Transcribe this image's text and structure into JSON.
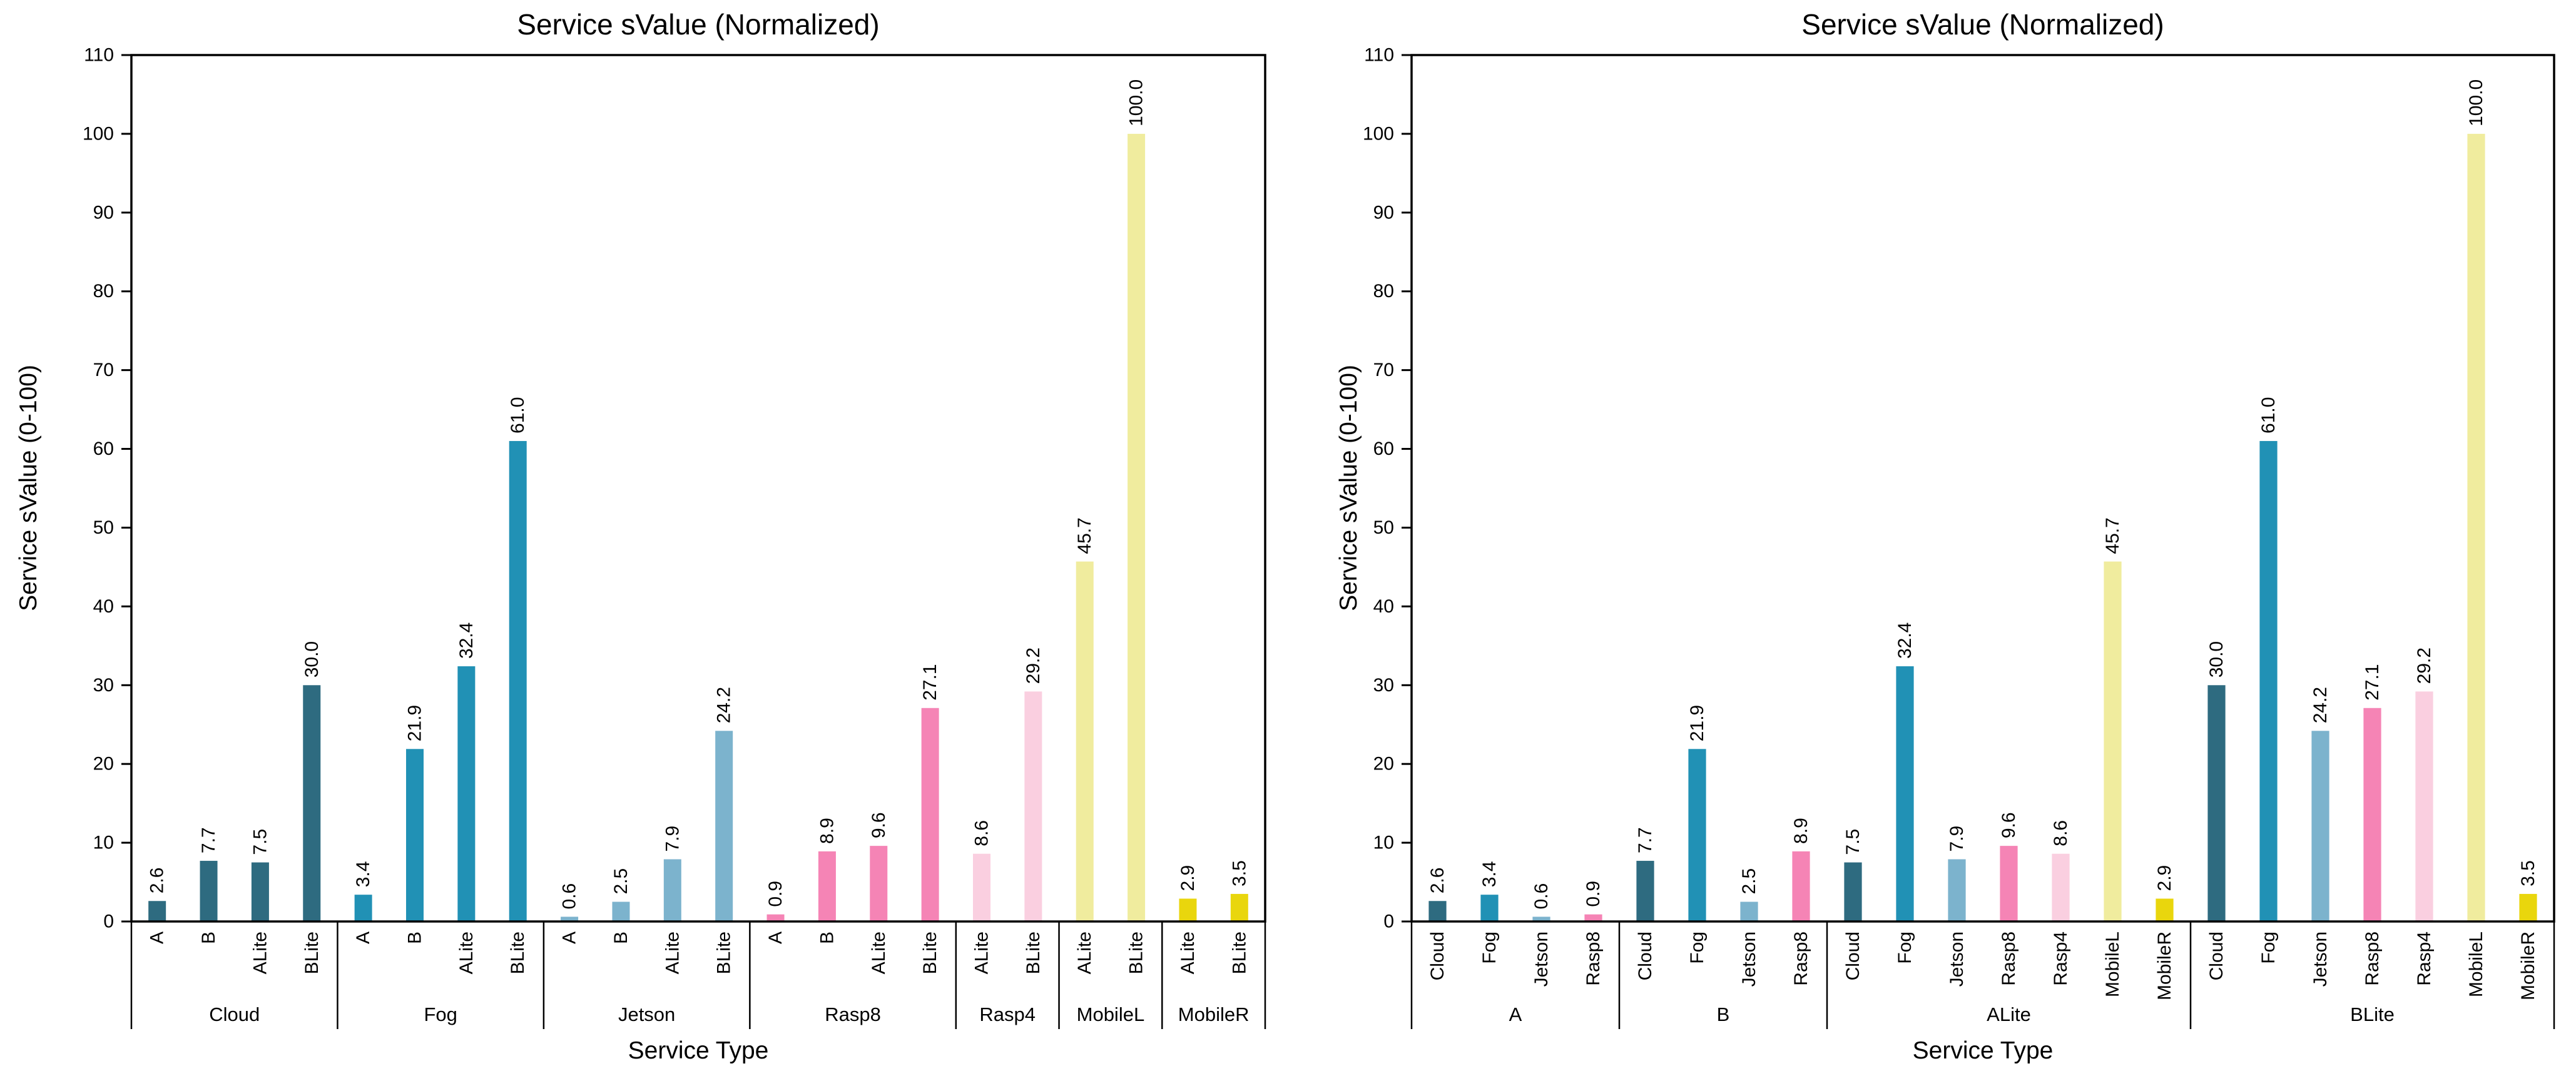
{
  "palette": {
    "Cloud": "#2e6b80",
    "Fog": "#2191b5",
    "Jetson": "#7cb3cd",
    "Rasp8": "#f584b5",
    "Rasp4": "#facfe0",
    "MobileL": "#f0ec9e",
    "MobileR": "#e9d60d"
  },
  "chart_data": [
    {
      "type": "bar",
      "title": "Service sValue (Normalized)",
      "xlabel": "Service Type",
      "ylabel": "Service sValue (0-100)",
      "ylim": [
        0,
        110
      ],
      "yticks": [
        0,
        10,
        20,
        30,
        40,
        50,
        60,
        70,
        80,
        90,
        100,
        110
      ],
      "grid": false,
      "legend": "none",
      "value_label_format": "0.1f",
      "groups": [
        {
          "label": "Cloud",
          "bars": [
            {
              "label": "A",
              "value": 2.6,
              "color_key": "Cloud"
            },
            {
              "label": "B",
              "value": 7.7,
              "color_key": "Cloud"
            },
            {
              "label": "ALite",
              "value": 7.5,
              "color_key": "Cloud"
            },
            {
              "label": "BLite",
              "value": 30.0,
              "color_key": "Cloud"
            }
          ]
        },
        {
          "label": "Fog",
          "bars": [
            {
              "label": "A",
              "value": 3.4,
              "color_key": "Fog"
            },
            {
              "label": "B",
              "value": 21.9,
              "color_key": "Fog"
            },
            {
              "label": "ALite",
              "value": 32.4,
              "color_key": "Fog"
            },
            {
              "label": "BLite",
              "value": 61.0,
              "color_key": "Fog"
            }
          ]
        },
        {
          "label": "Jetson",
          "bars": [
            {
              "label": "A",
              "value": 0.6,
              "color_key": "Jetson"
            },
            {
              "label": "B",
              "value": 2.5,
              "color_key": "Jetson"
            },
            {
              "label": "ALite",
              "value": 7.9,
              "color_key": "Jetson"
            },
            {
              "label": "BLite",
              "value": 24.2,
              "color_key": "Jetson"
            }
          ]
        },
        {
          "label": "Rasp8",
          "bars": [
            {
              "label": "A",
              "value": 0.9,
              "color_key": "Rasp8"
            },
            {
              "label": "B",
              "value": 8.9,
              "color_key": "Rasp8"
            },
            {
              "label": "ALite",
              "value": 9.6,
              "color_key": "Rasp8"
            },
            {
              "label": "BLite",
              "value": 27.1,
              "color_key": "Rasp8"
            }
          ]
        },
        {
          "label": "Rasp4",
          "bars": [
            {
              "label": "ALite",
              "value": 8.6,
              "color_key": "Rasp4"
            },
            {
              "label": "BLite",
              "value": 29.2,
              "color_key": "Rasp4"
            }
          ]
        },
        {
          "label": "MobileL",
          "bars": [
            {
              "label": "ALite",
              "value": 45.7,
              "color_key": "MobileL"
            },
            {
              "label": "BLite",
              "value": 100.0,
              "color_key": "MobileL"
            }
          ]
        },
        {
          "label": "MobileR",
          "bars": [
            {
              "label": "ALite",
              "value": 2.9,
              "color_key": "MobileR"
            },
            {
              "label": "BLite",
              "value": 3.5,
              "color_key": "MobileR"
            }
          ]
        }
      ]
    },
    {
      "type": "bar",
      "title": "Service sValue (Normalized)",
      "xlabel": "Service Type",
      "ylabel": "Service sValue (0-100)",
      "ylim": [
        0,
        110
      ],
      "yticks": [
        0,
        10,
        20,
        30,
        40,
        50,
        60,
        70,
        80,
        90,
        100,
        110
      ],
      "grid": false,
      "legend": "none",
      "value_label_format": "0.1f",
      "groups": [
        {
          "label": "A",
          "bars": [
            {
              "label": "Cloud",
              "value": 2.6,
              "color_key": "Cloud"
            },
            {
              "label": "Fog",
              "value": 3.4,
              "color_key": "Fog"
            },
            {
              "label": "Jetson",
              "value": 0.6,
              "color_key": "Jetson"
            },
            {
              "label": "Rasp8",
              "value": 0.9,
              "color_key": "Rasp8"
            }
          ]
        },
        {
          "label": "B",
          "bars": [
            {
              "label": "Cloud",
              "value": 7.7,
              "color_key": "Cloud"
            },
            {
              "label": "Fog",
              "value": 21.9,
              "color_key": "Fog"
            },
            {
              "label": "Jetson",
              "value": 2.5,
              "color_key": "Jetson"
            },
            {
              "label": "Rasp8",
              "value": 8.9,
              "color_key": "Rasp8"
            }
          ]
        },
        {
          "label": "ALite",
          "bars": [
            {
              "label": "Cloud",
              "value": 7.5,
              "color_key": "Cloud"
            },
            {
              "label": "Fog",
              "value": 32.4,
              "color_key": "Fog"
            },
            {
              "label": "Jetson",
              "value": 7.9,
              "color_key": "Jetson"
            },
            {
              "label": "Rasp8",
              "value": 9.6,
              "color_key": "Rasp8"
            },
            {
              "label": "Rasp4",
              "value": 8.6,
              "color_key": "Rasp4"
            },
            {
              "label": "MobileL",
              "value": 45.7,
              "color_key": "MobileL"
            },
            {
              "label": "MobileR",
              "value": 2.9,
              "color_key": "MobileR"
            }
          ]
        },
        {
          "label": "BLite",
          "bars": [
            {
              "label": "Cloud",
              "value": 30.0,
              "color_key": "Cloud"
            },
            {
              "label": "Fog",
              "value": 61.0,
              "color_key": "Fog"
            },
            {
              "label": "Jetson",
              "value": 24.2,
              "color_key": "Jetson"
            },
            {
              "label": "Rasp8",
              "value": 27.1,
              "color_key": "Rasp8"
            },
            {
              "label": "Rasp4",
              "value": 29.2,
              "color_key": "Rasp4"
            },
            {
              "label": "MobileL",
              "value": 100.0,
              "color_key": "MobileL"
            },
            {
              "label": "MobileR",
              "value": 3.5,
              "color_key": "MobileR"
            }
          ]
        }
      ]
    }
  ]
}
